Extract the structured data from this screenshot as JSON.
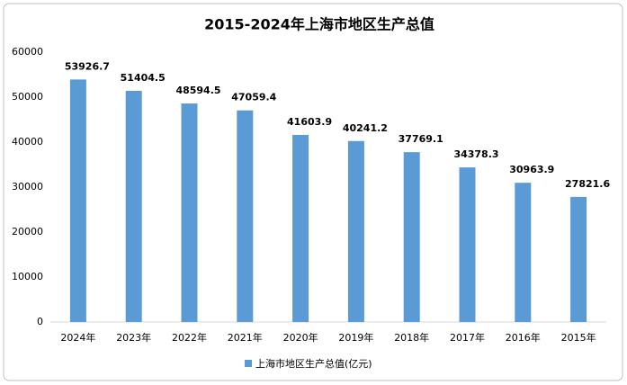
{
  "chart_data": {
    "type": "bar",
    "title": "2015-2024年上海市地区生产总值",
    "categories": [
      "2024年",
      "2023年",
      "2022年",
      "2021年",
      "2020年",
      "2019年",
      "2018年",
      "2017年",
      "2016年",
      "2015年"
    ],
    "series": [
      {
        "name": "上海市地区生产总值(亿元)",
        "color": "#5b9bd5",
        "values": [
          53926.7,
          51404.5,
          48594.5,
          47059.4,
          41603.9,
          40241.2,
          37769.1,
          34378.3,
          30963.9,
          27821.6
        ]
      }
    ],
    "ylim": [
      0,
      60000
    ],
    "yticks": [
      0,
      10000,
      20000,
      30000,
      40000,
      50000,
      60000
    ],
    "grid": false,
    "legend": "bottom"
  }
}
